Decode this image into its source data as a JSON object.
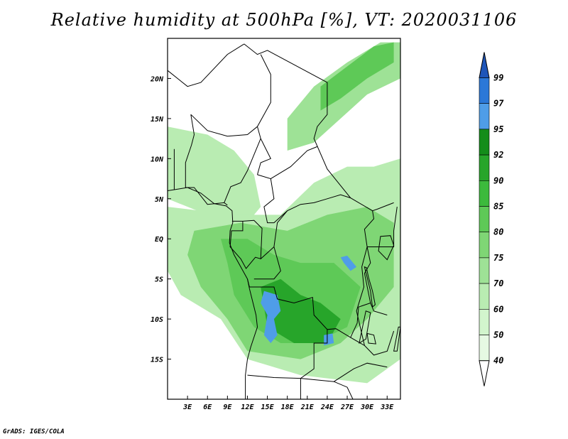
{
  "chart_data": {
    "type": "heatmap",
    "title": "Relative humidity at 500hPa [%], VT: 2020031106",
    "variable": "Relative humidity at 500hPa",
    "units": "%",
    "valid_time": "2020031106",
    "x_axis": {
      "ticks": [
        3,
        6,
        9,
        12,
        15,
        18,
        21,
        24,
        27,
        30,
        33
      ],
      "tick_labels": [
        "3E",
        "6E",
        "9E",
        "12E",
        "15E",
        "18E",
        "21E",
        "24E",
        "27E",
        "30E",
        "33E"
      ],
      "range": [
        0,
        35
      ]
    },
    "y_axis": {
      "ticks": [
        20,
        15,
        10,
        5,
        0,
        -5,
        -10,
        -15
      ],
      "tick_labels": [
        "20N",
        "15N",
        "10N",
        "5N",
        "EQ",
        "5S",
        "10S",
        "15S"
      ],
      "range": [
        -20,
        25
      ]
    },
    "levels": [
      40,
      50,
      60,
      70,
      75,
      80,
      85,
      90,
      92,
      95,
      97,
      99
    ],
    "level_labels": [
      "40",
      "50",
      "60",
      "70",
      "75",
      "80",
      "85",
      "90",
      "92",
      "95",
      "97",
      "99"
    ],
    "colors": [
      "#ffffff",
      "#e6f9e3",
      "#d2f5cd",
      "#b9ecb2",
      "#9ee296",
      "#7fd675",
      "#5ec957",
      "#3cba3c",
      "#27a52a",
      "#148d1a",
      "#4f9de8",
      "#2b78d8",
      "#1e55b8"
    ],
    "regions": [
      {
        "label": "northeast band",
        "value": 72,
        "points": [
          [
            18,
            15
          ],
          [
            22,
            19
          ],
          [
            27,
            22
          ],
          [
            32,
            24.5
          ],
          [
            35,
            24.5
          ],
          [
            35,
            20
          ],
          [
            30,
            18
          ],
          [
            26,
            15
          ],
          [
            22,
            12
          ],
          [
            18,
            11
          ]
        ]
      },
      {
        "label": "northeast core",
        "value": 82,
        "points": [
          [
            23,
            19
          ],
          [
            27,
            21.5
          ],
          [
            31,
            24
          ],
          [
            34,
            24.5
          ],
          [
            34,
            22
          ],
          [
            30,
            20
          ],
          [
            26,
            17.5
          ],
          [
            23,
            16
          ]
        ]
      },
      {
        "label": "west coast",
        "value": 60,
        "points": [
          [
            0,
            14
          ],
          [
            6,
            13
          ],
          [
            10,
            11
          ],
          [
            13,
            8
          ],
          [
            14,
            4
          ],
          [
            12,
            2
          ],
          [
            6,
            3
          ],
          [
            0,
            5
          ]
        ]
      },
      {
        "label": "central broad",
        "value": 62,
        "points": [
          [
            0,
            4
          ],
          [
            10,
            3
          ],
          [
            17,
            3
          ],
          [
            22,
            7
          ],
          [
            27,
            9
          ],
          [
            31,
            9
          ],
          [
            35,
            10
          ],
          [
            35,
            -15
          ],
          [
            30,
            -18
          ],
          [
            20,
            -17
          ],
          [
            12,
            -15
          ],
          [
            8,
            -10
          ],
          [
            2,
            -7
          ],
          [
            0,
            -4
          ]
        ]
      },
      {
        "label": "central mid",
        "value": 75,
        "points": [
          [
            4,
            1
          ],
          [
            11,
            2
          ],
          [
            18,
            1
          ],
          [
            24,
            3
          ],
          [
            30,
            4
          ],
          [
            34,
            2
          ],
          [
            34,
            -6
          ],
          [
            30,
            -10
          ],
          [
            26,
            -13
          ],
          [
            20,
            -15
          ],
          [
            12,
            -14
          ],
          [
            9,
            -10
          ],
          [
            5,
            -6
          ],
          [
            3,
            -2
          ]
        ]
      },
      {
        "label": "central core",
        "value": 84,
        "points": [
          [
            8,
            0
          ],
          [
            12,
            0
          ],
          [
            16,
            -2
          ],
          [
            20,
            -3
          ],
          [
            25,
            -3
          ],
          [
            29,
            -6
          ],
          [
            27,
            -11
          ],
          [
            22,
            -13
          ],
          [
            17,
            -13
          ],
          [
            13,
            -11
          ],
          [
            10,
            -7
          ],
          [
            9,
            -3
          ]
        ]
      },
      {
        "label": "core high",
        "value": 90,
        "points": [
          [
            14,
            -6
          ],
          [
            17,
            -5
          ],
          [
            20,
            -7
          ],
          [
            23,
            -8
          ],
          [
            26,
            -10
          ],
          [
            24,
            -13
          ],
          [
            19,
            -13
          ],
          [
            15,
            -11
          ]
        ]
      }
    ],
    "blue_cells": [
      {
        "label": "angola cells",
        "value": 96,
        "points": [
          [
            14.5,
            -6.5
          ],
          [
            16.5,
            -7
          ],
          [
            17,
            -9
          ],
          [
            16,
            -10
          ],
          [
            16.5,
            -12
          ],
          [
            15.5,
            -13
          ],
          [
            14.5,
            -12
          ],
          [
            15,
            -9.5
          ],
          [
            14,
            -8
          ]
        ]
      },
      {
        "label": "zambia cell",
        "value": 96,
        "points": [
          [
            23.5,
            -12
          ],
          [
            24.8,
            -11.8
          ],
          [
            25,
            -13
          ],
          [
            23.5,
            -13.3
          ]
        ]
      },
      {
        "label": "congo cell",
        "value": 95,
        "points": [
          [
            26,
            -2.3
          ],
          [
            27,
            -2.1
          ],
          [
            28.4,
            -3.5
          ],
          [
            27.5,
            -4
          ],
          [
            26.5,
            -3
          ]
        ]
      }
    ],
    "color_bar_extends": "both",
    "legend_placement": "right"
  },
  "footer": {
    "credit": "GrADS: IGES/COLA"
  }
}
